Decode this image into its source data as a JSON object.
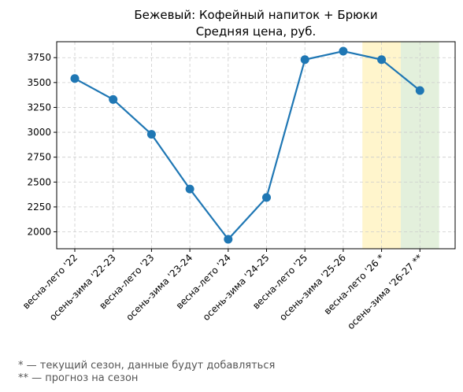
{
  "chart_data": {
    "type": "line",
    "title": [
      "Бежевый: Кофейный напиток + Брюки",
      "Средняя цена, руб."
    ],
    "xlabel": "",
    "ylabel": "",
    "categories": [
      "весна-лето '22",
      "осень-зима '22-23",
      "весна-лето '23",
      "осень-зима '23-24",
      "весна-лето '24",
      "осень-зима '24-25",
      "весна-лето '25",
      "осень-зима '25-26",
      "весна-лето '26 *",
      "осень-зима '26-27 **"
    ],
    "series": [
      {
        "values": [
          3540,
          3330,
          2980,
          2430,
          1925,
          2345,
          3730,
          3815,
          3730,
          3420
        ],
        "color": "#1f77b4"
      }
    ],
    "ylim": [
      1830,
      3910
    ],
    "yticks": [
      2000,
      2250,
      2500,
      2750,
      3000,
      3250,
      3500,
      3750
    ],
    "grid": true,
    "highlight_bands": [
      {
        "category_index": 8,
        "color": "#fff5cc"
      },
      {
        "category_index": 9,
        "color": "#e3f0dc"
      }
    ]
  },
  "footnotes": [
    "* — текущий сезон, данные будут добавляться",
    "** — прогноз на сезон"
  ]
}
